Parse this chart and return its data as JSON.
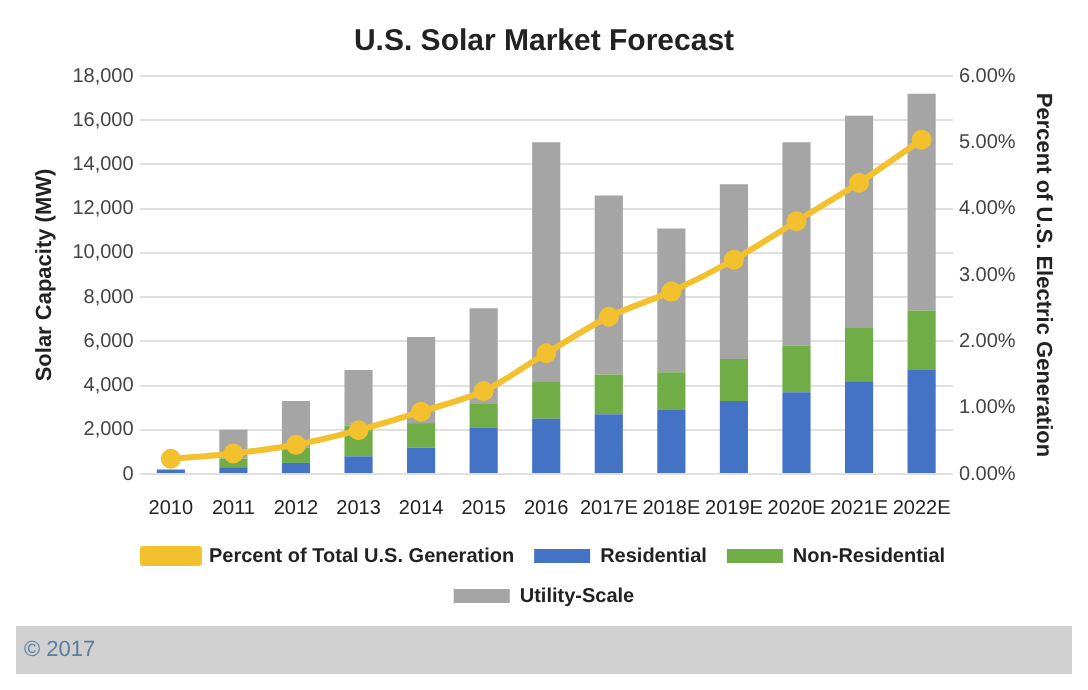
{
  "chart_data": {
    "type": "bar",
    "title": "U.S. Solar Market Forecast",
    "ylabel": "Solar Capacity (MW)",
    "y2label": "Percent of U.S. Electric Generation",
    "categories": [
      "2010",
      "2011",
      "2012",
      "2013",
      "2014",
      "2015",
      "2016",
      "2017E",
      "2018E",
      "2019E",
      "2020E",
      "2021E",
      "2022E"
    ],
    "stacked": true,
    "series": [
      {
        "name": "Residential",
        "color": "#4472c4",
        "values": [
          200,
          300,
          500,
          800,
          1200,
          2100,
          2500,
          2700,
          2900,
          3300,
          3700,
          4200,
          4700
        ]
      },
      {
        "name": "Non-Residential",
        "color": "#70ad47",
        "values": [
          null,
          400,
          700,
          1400,
          1100,
          1100,
          1700,
          1800,
          1700,
          1900,
          2100,
          2400,
          2700
        ]
      },
      {
        "name": "Utility-Scale",
        "color": "#a5a5a5",
        "values": [
          null,
          1300,
          2100,
          2500,
          3900,
          4300,
          10800,
          8100,
          6500,
          7900,
          9200,
          9600,
          9800
        ]
      },
      {
        "name": "Percent of Total U.S. Generation",
        "type": "line",
        "axis": "y2",
        "color": "#f4c12e",
        "marker": "circle",
        "values": [
          0.23,
          0.31,
          0.44,
          0.66,
          0.94,
          1.25,
          1.82,
          2.37,
          2.75,
          3.23,
          3.81,
          4.39,
          5.04
        ]
      }
    ],
    "ylim": [
      0,
      18000
    ],
    "yticks": [
      {
        "value": 0,
        "label": "0"
      },
      {
        "value": 2000,
        "label": "2,000"
      },
      {
        "value": 4000,
        "label": "4,000"
      },
      {
        "value": 6000,
        "label": "6,000"
      },
      {
        "value": 8000,
        "label": "8,000"
      },
      {
        "value": 10000,
        "label": "10,000"
      },
      {
        "value": 12000,
        "label": "12,000"
      },
      {
        "value": 14000,
        "label": "14,000"
      },
      {
        "value": 16000,
        "label": "16,000"
      },
      {
        "value": 18000,
        "label": "18,000"
      }
    ],
    "y2lim": [
      0,
      6
    ],
    "y2ticks": [
      {
        "value": 0,
        "label": "0.00%"
      },
      {
        "value": 1,
        "label": "1.00%"
      },
      {
        "value": 2,
        "label": "2.00%"
      },
      {
        "value": 3,
        "label": "3.00%"
      },
      {
        "value": 4,
        "label": "4.00%"
      },
      {
        "value": 5,
        "label": "5.00%"
      },
      {
        "value": 6,
        "label": "6.00%"
      }
    ],
    "grid": "y",
    "legend": "bottom",
    "annotations": [
      "© 2017"
    ]
  }
}
